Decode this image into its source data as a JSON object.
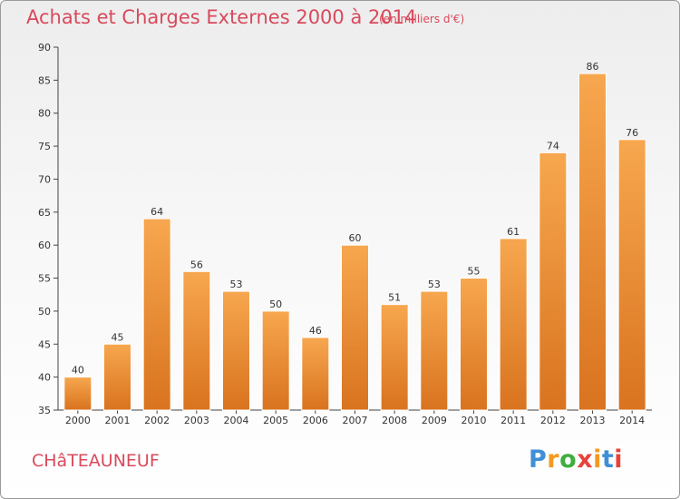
{
  "title": "Achats et Charges Externes 2000 à 2014",
  "subtitle": "(en milliers d'€)",
  "town": "CHâTEAUNEUF",
  "logo": {
    "text": "Proxiti",
    "letter_colors": [
      "#3f8fd6",
      "#f29a1f",
      "#3fae3f",
      "#e8423c",
      "#f29a1f",
      "#3f8fd6",
      "#e8423c"
    ]
  },
  "colors": {
    "bar_top": "#f7a74f",
    "bar_bottom": "#d9731f",
    "text_accent": "#d84a5c"
  },
  "chart_data": {
    "type": "bar",
    "categories": [
      "2000",
      "2001",
      "2002",
      "2003",
      "2004",
      "2005",
      "2006",
      "2007",
      "2008",
      "2009",
      "2010",
      "2011",
      "2012",
      "2013",
      "2014"
    ],
    "values": [
      40,
      45,
      64,
      56,
      53,
      50,
      46,
      60,
      51,
      53,
      55,
      61,
      74,
      86,
      76
    ],
    "title": "Achats et Charges Externes 2000 à 2014",
    "subtitle": "(en milliers d'€)",
    "ylim": [
      35,
      90
    ],
    "yticks": [
      35,
      40,
      45,
      50,
      55,
      60,
      65,
      70,
      75,
      80,
      85,
      90
    ],
    "grid": false,
    "legend": "none"
  }
}
